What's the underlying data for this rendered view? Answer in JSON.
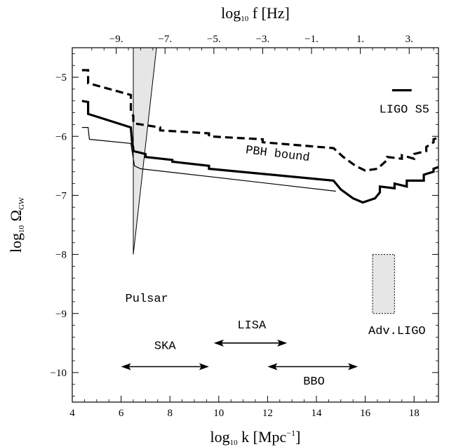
{
  "chart_data": {
    "type": "line",
    "title": "",
    "xlabel": {
      "base": "log",
      "sub": "10",
      "rest": " k [Mpc",
      "sup": "−1",
      "end": "]"
    },
    "ylabel": {
      "base": "log",
      "sub": "10",
      "omega": " Ω",
      "omegasub": "GW"
    },
    "x2label": {
      "base": "log",
      "sub": "10",
      "rest": " f [Hz]"
    },
    "xlim": [
      4,
      19
    ],
    "ylim": [
      -10.5,
      -4.5
    ],
    "xticks": [
      4,
      6,
      8,
      10,
      12,
      14,
      16,
      18
    ],
    "xtick_labels": [
      "4",
      "6",
      "8",
      "10",
      "12",
      "14",
      "16",
      "18"
    ],
    "yticks": [
      -5,
      -6,
      -7,
      -8,
      -9,
      -10
    ],
    "ytick_labels": [
      "−5",
      "−6",
      "−7",
      "−8",
      "−9",
      "−10"
    ],
    "x2ticks": [
      {
        "f": -9,
        "label": "−9."
      },
      {
        "f": -7,
        "label": "−7."
      },
      {
        "f": -5,
        "label": "−5."
      },
      {
        "f": -3,
        "label": "−3."
      },
      {
        "f": -1,
        "label": "−1."
      },
      {
        "f": 1,
        "label": "1."
      },
      {
        "f": 3,
        "label": "3."
      }
    ],
    "f_to_k_offset": 14.8,
    "series": [
      {
        "name": "LIGO S5",
        "style": "dashed-thick",
        "points": [
          [
            4.4,
            -4.88
          ],
          [
            4.65,
            -4.88
          ],
          [
            4.65,
            -5.1
          ],
          [
            6.4,
            -5.3
          ],
          [
            6.4,
            -5.6
          ],
          [
            6.5,
            -5.65
          ],
          [
            6.5,
            -5.78
          ],
          [
            7.6,
            -5.85
          ],
          [
            7.6,
            -5.9
          ],
          [
            9.6,
            -5.95
          ],
          [
            9.6,
            -6.0
          ],
          [
            11.8,
            -6.05
          ],
          [
            11.8,
            -6.1
          ],
          [
            14.7,
            -6.2
          ],
          [
            15.1,
            -6.35
          ],
          [
            15.6,
            -6.5
          ],
          [
            16.0,
            -6.58
          ],
          [
            16.5,
            -6.55
          ],
          [
            16.9,
            -6.4
          ],
          [
            16.9,
            -6.35
          ],
          [
            17.5,
            -6.38
          ],
          [
            17.5,
            -6.32
          ],
          [
            18.0,
            -6.38
          ],
          [
            18.0,
            -6.3
          ],
          [
            18.5,
            -6.25
          ],
          [
            18.5,
            -6.18
          ],
          [
            18.8,
            -6.1
          ],
          [
            18.8,
            -6.05
          ],
          [
            19.0,
            -6.02
          ]
        ]
      },
      {
        "name": "PBH bound",
        "style": "solid-thick",
        "points": [
          [
            4.4,
            -5.4
          ],
          [
            4.65,
            -5.42
          ],
          [
            4.65,
            -5.62
          ],
          [
            6.4,
            -5.85
          ],
          [
            6.45,
            -6.1
          ],
          [
            6.5,
            -6.2
          ],
          [
            6.5,
            -6.25
          ],
          [
            7.0,
            -6.3
          ],
          [
            7.0,
            -6.35
          ],
          [
            8.1,
            -6.4
          ],
          [
            8.1,
            -6.43
          ],
          [
            9.6,
            -6.5
          ],
          [
            9.6,
            -6.55
          ],
          [
            14.7,
            -6.75
          ],
          [
            15.0,
            -6.9
          ],
          [
            15.5,
            -7.05
          ],
          [
            15.9,
            -7.12
          ],
          [
            16.4,
            -7.05
          ],
          [
            16.6,
            -6.95
          ],
          [
            16.6,
            -6.85
          ],
          [
            17.2,
            -6.88
          ],
          [
            17.2,
            -6.8
          ],
          [
            17.7,
            -6.85
          ],
          [
            17.7,
            -6.75
          ],
          [
            18.4,
            -6.75
          ],
          [
            18.4,
            -6.65
          ],
          [
            18.8,
            -6.6
          ],
          [
            18.8,
            -6.55
          ],
          [
            19.0,
            -6.52
          ]
        ]
      },
      {
        "name": "",
        "style": "solid-thin",
        "points": [
          [
            4.4,
            -5.85
          ],
          [
            4.65,
            -5.85
          ],
          [
            4.7,
            -6.05
          ],
          [
            6.4,
            -6.12
          ],
          [
            6.55,
            -6.5
          ],
          [
            6.8,
            -6.55
          ],
          [
            10.0,
            -6.7
          ],
          [
            14.8,
            -6.93
          ]
        ]
      }
    ],
    "regions": [
      {
        "name": "Pulsar",
        "type": "triangle",
        "points": [
          [
            6.5,
            -8.0
          ],
          [
            6.5,
            -4.5
          ],
          [
            7.45,
            -4.5
          ]
        ]
      },
      {
        "name": "Adv.LIGO",
        "type": "rect",
        "x": [
          16.3,
          17.2
        ],
        "y": [
          -9.0,
          -8.0
        ]
      }
    ],
    "ranges": [
      {
        "name": "SKA",
        "x": [
          6.0,
          9.6
        ],
        "y": -9.9
      },
      {
        "name": "LISA",
        "x": [
          9.8,
          12.8
        ],
        "y": -9.5
      },
      {
        "name": "BBO",
        "x": [
          12.0,
          15.7
        ],
        "y": -9.9
      }
    ],
    "annotations": [
      {
        "text": "LIGO S5",
        "x": 17.6,
        "y": -5.6,
        "anchor": "middle"
      },
      {
        "text": "PBH bound",
        "x": 12.4,
        "y": -6.35,
        "anchor": "middle",
        "rotate": 7
      },
      {
        "text": "Pulsar",
        "x": 7.05,
        "y": -8.8,
        "anchor": "middle"
      },
      {
        "text": "SKA",
        "x": 7.8,
        "y": -9.6,
        "anchor": "middle"
      },
      {
        "text": "LISA",
        "x": 11.35,
        "y": -9.25,
        "anchor": "middle"
      },
      {
        "text": "BBO",
        "x": 13.9,
        "y": -10.2,
        "anchor": "middle"
      },
      {
        "text": "Adv.LIGO",
        "x": 17.3,
        "y": -9.35,
        "anchor": "middle"
      }
    ],
    "legend_marker": {
      "x": [
        17.1,
        17.9
      ],
      "y": -5.22
    },
    "grid": false
  }
}
